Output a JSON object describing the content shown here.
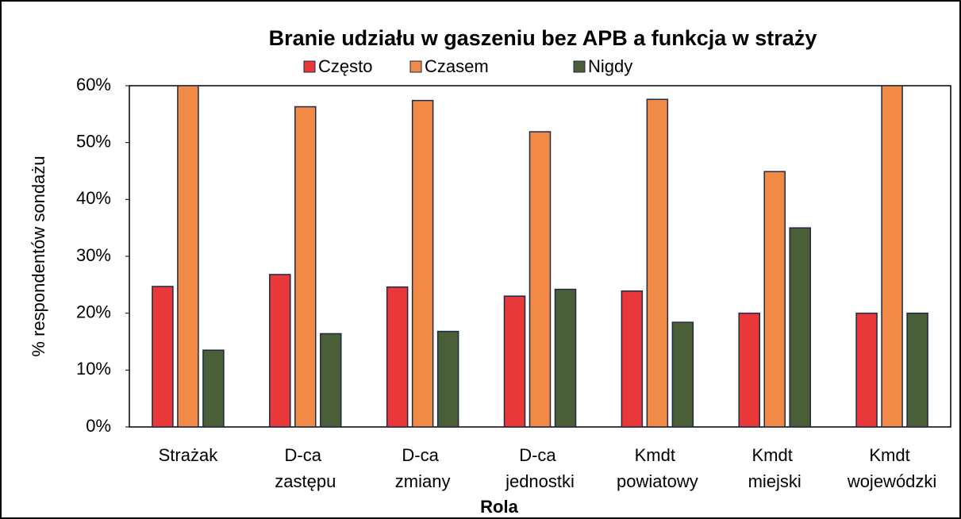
{
  "chart_data": {
    "type": "bar",
    "title": "Branie udziału w gaszeniu bez APB a funkcja w straży",
    "x_label": "Rola",
    "y_label": "% respondentów sondażu",
    "categories": [
      "Strażak",
      "D-ca zastępu",
      "D-ca zmiany",
      "D-ca jednostki",
      "Kmdt powiatowy",
      "Kmdt miejski",
      "Kmdt wojewódzki"
    ],
    "series": [
      {
        "name": "Często",
        "color": "#e8383a",
        "values": [
          24.7,
          26.8,
          24.6,
          23.0,
          23.9,
          20.0,
          20.0
        ]
      },
      {
        "name": "Czasem",
        "color": "#f08a46",
        "values": [
          60.0,
          56.3,
          57.4,
          51.9,
          57.6,
          44.9,
          60.0
        ]
      },
      {
        "name": "Nigdy",
        "color": "#4a5e38",
        "values": [
          13.5,
          16.4,
          16.8,
          24.2,
          18.4,
          35.0,
          20.0
        ]
      }
    ],
    "ylim": [
      0,
      60
    ],
    "yticks": [
      {
        "value": 0,
        "label": "0%"
      },
      {
        "value": 10,
        "label": "10%"
      },
      {
        "value": 20,
        "label": "20%"
      },
      {
        "value": 30,
        "label": "30%"
      },
      {
        "value": 40,
        "label": "40%"
      },
      {
        "value": 50,
        "label": "50%"
      },
      {
        "value": 60,
        "label": "60%"
      }
    ]
  }
}
